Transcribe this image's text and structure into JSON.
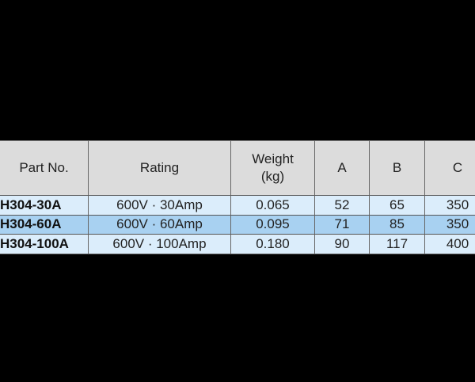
{
  "table": {
    "headers": [
      [
        "Part No."
      ],
      [
        "Rating"
      ],
      [
        "Weight",
        "(kg)"
      ],
      [
        "A"
      ],
      [
        "B"
      ],
      [
        "C"
      ]
    ],
    "rows": [
      [
        "H304-30A",
        "600V · 30Amp",
        "0.065",
        "52",
        "65",
        "350"
      ],
      [
        "H304-60A",
        "600V · 60Amp",
        "0.095",
        "71",
        "85",
        "350"
      ],
      [
        "H304-100A",
        "600V · 100Amp",
        "0.180",
        "90",
        "117",
        "400"
      ]
    ]
  }
}
